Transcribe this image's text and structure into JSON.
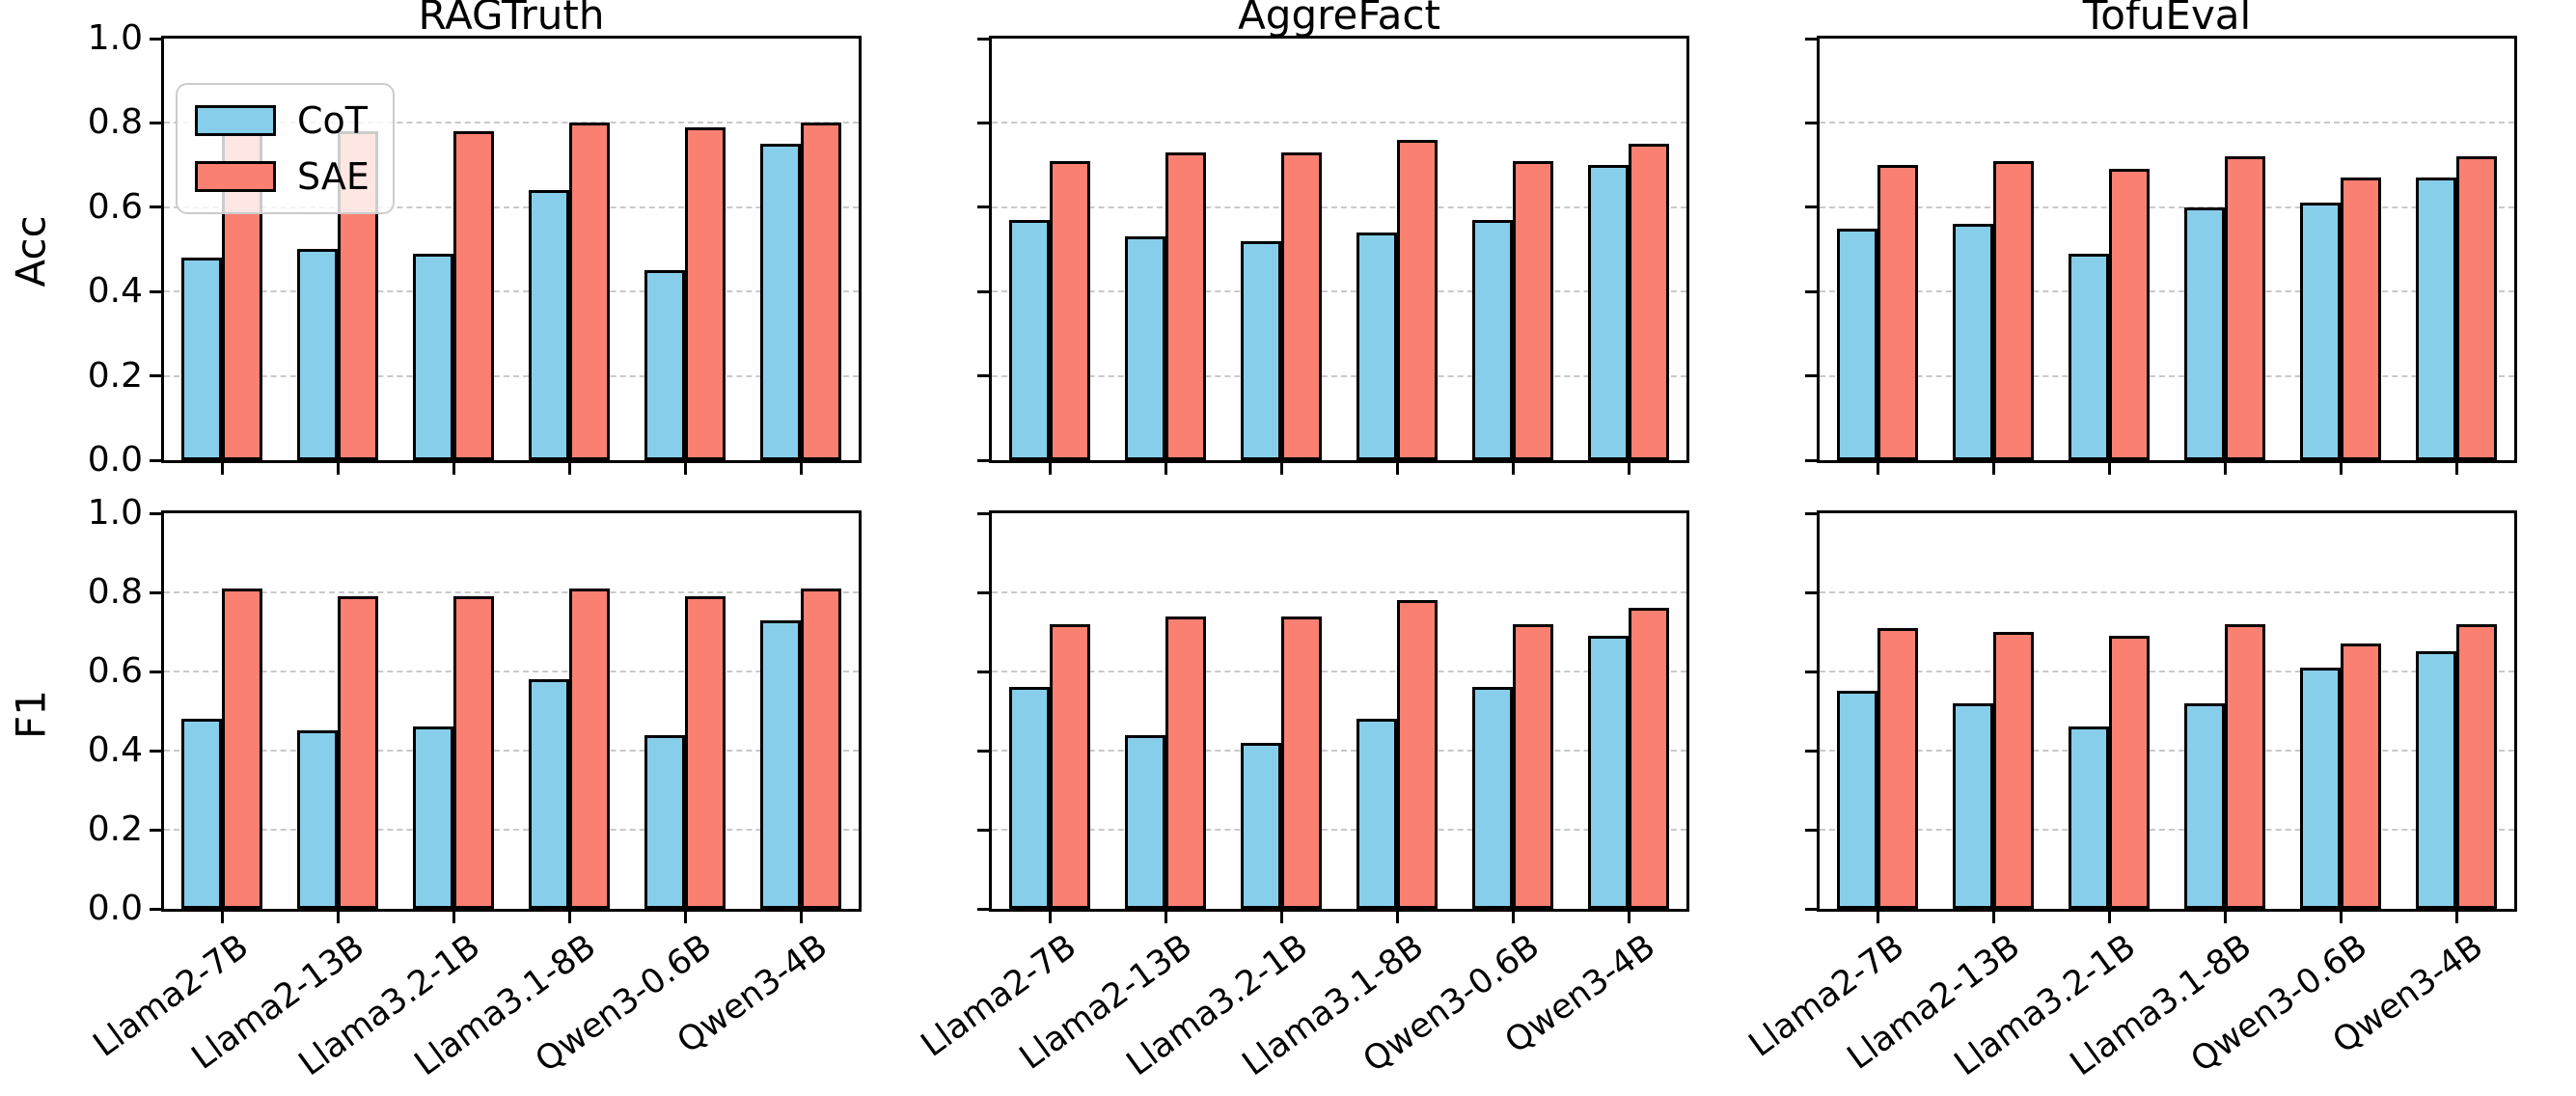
{
  "figure": {
    "background": "#ffffff",
    "legend": {
      "position": "upper left of first subplot",
      "items": [
        {
          "label": "CoT",
          "color": "#87CEEB"
        },
        {
          "label": "SAE",
          "color": "#FA8072"
        }
      ]
    },
    "column_titles": [
      "RAGTruth",
      "AggreFact",
      "TofuEval"
    ],
    "row_metrics": [
      "Acc",
      "F1"
    ],
    "categories": [
      "Llama2-7B",
      "Llama2-13B",
      "Llama3.2-1B",
      "Llama3.1-8B",
      "Qwen3-0.6B",
      "Qwen3-4B"
    ],
    "ytick_labels": [
      "1.0",
      "0.8",
      "0.6",
      "0.4",
      "0.2",
      "0.0"
    ],
    "bar_edge_color": "#000000",
    "grid_color": "#c9c9c9"
  },
  "chart_data": [
    {
      "type": "bar",
      "title": "RAGTruth",
      "ylabel": "Acc",
      "ylim": [
        0.0,
        1.0
      ],
      "yticks": [
        0.0,
        0.2,
        0.4,
        0.6,
        0.8,
        1.0
      ],
      "grid": "dashed horizontal",
      "categories": [
        "Llama2-7B",
        "Llama2-13B",
        "Llama3.2-1B",
        "Llama3.1-8B",
        "Qwen3-0.6B",
        "Qwen3-4B"
      ],
      "series": [
        {
          "name": "CoT",
          "values": [
            0.48,
            0.5,
            0.49,
            0.64,
            0.45,
            0.75
          ]
        },
        {
          "name": "SAE",
          "values": [
            0.81,
            0.78,
            0.78,
            0.8,
            0.79,
            0.8
          ]
        }
      ]
    },
    {
      "type": "bar",
      "title": "AggreFact",
      "ylabel": "Acc",
      "ylim": [
        0.0,
        1.0
      ],
      "yticks": [
        0.0,
        0.2,
        0.4,
        0.6,
        0.8,
        1.0
      ],
      "grid": "dashed horizontal",
      "categories": [
        "Llama2-7B",
        "Llama2-13B",
        "Llama3.2-1B",
        "Llama3.1-8B",
        "Qwen3-0.6B",
        "Qwen3-4B"
      ],
      "series": [
        {
          "name": "CoT",
          "values": [
            0.57,
            0.53,
            0.52,
            0.54,
            0.57,
            0.7
          ]
        },
        {
          "name": "SAE",
          "values": [
            0.71,
            0.73,
            0.73,
            0.76,
            0.71,
            0.75
          ]
        }
      ]
    },
    {
      "type": "bar",
      "title": "TofuEval",
      "ylabel": "Acc",
      "ylim": [
        0.0,
        1.0
      ],
      "yticks": [
        0.0,
        0.2,
        0.4,
        0.6,
        0.8,
        1.0
      ],
      "grid": "dashed horizontal",
      "categories": [
        "Llama2-7B",
        "Llama2-13B",
        "Llama3.2-1B",
        "Llama3.1-8B",
        "Qwen3-0.6B",
        "Qwen3-4B"
      ],
      "series": [
        {
          "name": "CoT",
          "values": [
            0.55,
            0.56,
            0.49,
            0.6,
            0.61,
            0.67
          ]
        },
        {
          "name": "SAE",
          "values": [
            0.7,
            0.71,
            0.69,
            0.72,
            0.67,
            0.72
          ]
        }
      ]
    },
    {
      "type": "bar",
      "title": "",
      "ylabel": "F1",
      "ylim": [
        0.0,
        1.0
      ],
      "yticks": [
        0.0,
        0.2,
        0.4,
        0.6,
        0.8,
        1.0
      ],
      "grid": "dashed horizontal",
      "categories": [
        "Llama2-7B",
        "Llama2-13B",
        "Llama3.2-1B",
        "Llama3.1-8B",
        "Qwen3-0.6B",
        "Qwen3-4B"
      ],
      "series": [
        {
          "name": "CoT",
          "values": [
            0.48,
            0.45,
            0.46,
            0.58,
            0.44,
            0.73
          ]
        },
        {
          "name": "SAE",
          "values": [
            0.81,
            0.79,
            0.79,
            0.81,
            0.79,
            0.81
          ]
        }
      ]
    },
    {
      "type": "bar",
      "title": "",
      "ylabel": "F1",
      "ylim": [
        0.0,
        1.0
      ],
      "yticks": [
        0.0,
        0.2,
        0.4,
        0.6,
        0.8,
        1.0
      ],
      "grid": "dashed horizontal",
      "categories": [
        "Llama2-7B",
        "Llama2-13B",
        "Llama3.2-1B",
        "Llama3.1-8B",
        "Qwen3-0.6B",
        "Qwen3-4B"
      ],
      "series": [
        {
          "name": "CoT",
          "values": [
            0.56,
            0.44,
            0.42,
            0.48,
            0.56,
            0.69
          ]
        },
        {
          "name": "SAE",
          "values": [
            0.72,
            0.74,
            0.74,
            0.78,
            0.72,
            0.76
          ]
        }
      ]
    },
    {
      "type": "bar",
      "title": "",
      "ylabel": "F1",
      "ylim": [
        0.0,
        1.0
      ],
      "yticks": [
        0.0,
        0.2,
        0.4,
        0.6,
        0.8,
        1.0
      ],
      "grid": "dashed horizontal",
      "categories": [
        "Llama2-7B",
        "Llama2-13B",
        "Llama3.2-1B",
        "Llama3.1-8B",
        "Qwen3-0.6B",
        "Qwen3-4B"
      ],
      "series": [
        {
          "name": "CoT",
          "values": [
            0.55,
            0.52,
            0.46,
            0.52,
            0.61,
            0.65
          ]
        },
        {
          "name": "SAE",
          "values": [
            0.71,
            0.7,
            0.69,
            0.72,
            0.67,
            0.72
          ]
        }
      ]
    }
  ]
}
